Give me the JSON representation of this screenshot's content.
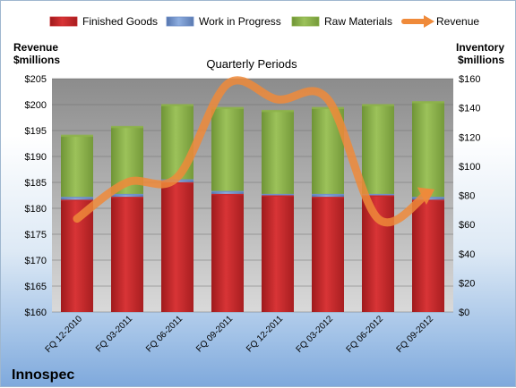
{
  "company": "Innospec",
  "chart_data": {
    "type": "bar",
    "title": "Quarterly Periods",
    "categories": [
      "FQ 12-2010",
      "FQ 03-2011",
      "FQ 06-2011",
      "FQ 09-2011",
      "FQ 12-2011",
      "FQ 03-2012",
      "FQ 06-2012",
      "FQ 09-2012"
    ],
    "left_axis": {
      "label_line1": "Revenue",
      "label_line2": "$millions",
      "ylim": [
        160,
        205
      ],
      "ticks": [
        160,
        165,
        170,
        175,
        180,
        185,
        190,
        195,
        200,
        205
      ],
      "prefix": "$"
    },
    "right_axis": {
      "label_line1": "Inventory",
      "label_line2": "$millions",
      "ylim": [
        0,
        160
      ],
      "ticks": [
        0,
        20,
        40,
        60,
        80,
        100,
        120,
        140,
        160
      ],
      "prefix": "$"
    },
    "legend_position": "top",
    "series": [
      {
        "name": "Finished Goods",
        "type": "stacked-bar",
        "axis": "right",
        "color": "#c8282a",
        "values": [
          77,
          79,
          89,
          81,
          80,
          79,
          80,
          77
        ]
      },
      {
        "name": "Work in Progress",
        "type": "stacked-bar",
        "axis": "right",
        "color": "#6f8fc8",
        "values": [
          2,
          2,
          2,
          2,
          1,
          2,
          1,
          2
        ]
      },
      {
        "name": "Raw Materials",
        "type": "stacked-bar",
        "axis": "right",
        "color": "#8db34a",
        "values": [
          42,
          46,
          51,
          57,
          57,
          59,
          61,
          65
        ]
      },
      {
        "name": "Revenue",
        "type": "line",
        "axis": "left",
        "color": "#ef8a3a",
        "values": [
          178,
          185,
          186,
          204,
          201,
          201,
          178,
          183
        ]
      }
    ]
  }
}
